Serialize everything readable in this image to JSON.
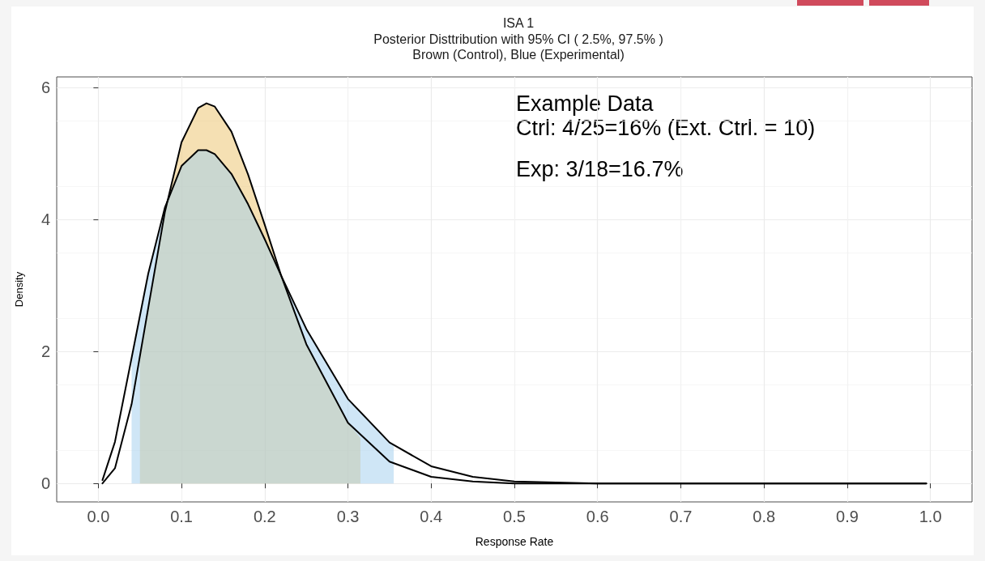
{
  "chart_data": {
    "type": "line",
    "title": "ISA 1",
    "subtitle": "Posterior Disttribution with 95% CI ( 2.5%, 97.5% )\nBrown (Control), Blue (Experimental)",
    "xlabel": "Response Rate",
    "ylabel": "Density",
    "xlim": [
      -0.05,
      1.05
    ],
    "ylim": [
      -0.28,
      6.16
    ],
    "xticks": [
      {
        "value": 0,
        "label": "0.0"
      },
      0.1,
      0.2,
      0.3,
      0.4,
      0.5,
      0.6,
      0.7,
      0.8,
      0.9,
      {
        "value": 1,
        "label": "1.0"
      }
    ],
    "yticks": [
      0,
      2,
      4,
      6
    ],
    "grid": true,
    "series": [
      {
        "type": "area",
        "color": "#f5e0b3",
        "x": [
          0.05,
          0.06,
          0.08,
          0.1,
          0.12,
          0.13,
          0.14,
          0.16,
          0.18,
          0.2,
          0.22,
          0.25,
          0.3,
          0.315
        ],
        "values": [
          1.9,
          2.66,
          4.11,
          5.17,
          5.69,
          5.76,
          5.71,
          5.33,
          4.68,
          3.92,
          3.14,
          2.11,
          0.92,
          0.69
        ]
      },
      {
        "type": "area",
        "color": "#cfe6f6",
        "x": [
          0.04,
          0.06,
          0.08,
          0.1,
          0.12,
          0.13,
          0.14,
          0.16,
          0.18,
          0.2,
          0.22,
          0.25,
          0.3,
          0.35,
          0.355
        ],
        "values": [
          1.9,
          3.18,
          4.18,
          4.81,
          5.05,
          5.05,
          4.99,
          4.69,
          4.23,
          3.7,
          3.14,
          2.34,
          1.28,
          0.62,
          0.57
        ]
      },
      {
        "color": "#000000",
        "x": [
          0.005,
          0.02,
          0.04,
          0.06,
          0.08,
          0.1,
          0.12,
          0.13,
          0.14,
          0.16,
          0.18,
          0.2,
          0.22,
          0.25,
          0.3,
          0.35,
          0.4,
          0.45,
          0.5,
          0.6,
          0.7,
          0.8,
          0.9,
          0.995
        ],
        "values": [
          0,
          0.23,
          1.2,
          2.66,
          4.11,
          5.17,
          5.69,
          5.76,
          5.71,
          5.33,
          4.68,
          3.92,
          3.14,
          2.11,
          0.92,
          0.33,
          0.1,
          0.03,
          0,
          0,
          0,
          0,
          0,
          0
        ]
      },
      {
        "color": "#000000",
        "x": [
          0.005,
          0.02,
          0.04,
          0.06,
          0.08,
          0.1,
          0.12,
          0.13,
          0.14,
          0.16,
          0.18,
          0.2,
          0.22,
          0.25,
          0.3,
          0.35,
          0.4,
          0.45,
          0.5,
          0.6,
          0.7,
          0.8,
          0.9,
          0.995
        ],
        "values": [
          0.05,
          0.63,
          1.9,
          3.18,
          4.18,
          4.81,
          5.05,
          5.05,
          4.99,
          4.69,
          4.23,
          3.7,
          3.14,
          2.34,
          1.28,
          0.62,
          0.26,
          0.1,
          0.03,
          0,
          0,
          0,
          0,
          0
        ]
      }
    ],
    "annotations": [
      "Example Data",
      "Ctrl: 4/25=16% (Ext. Ctrl. = 10)",
      "Exp: 3/18=16.7%"
    ]
  }
}
